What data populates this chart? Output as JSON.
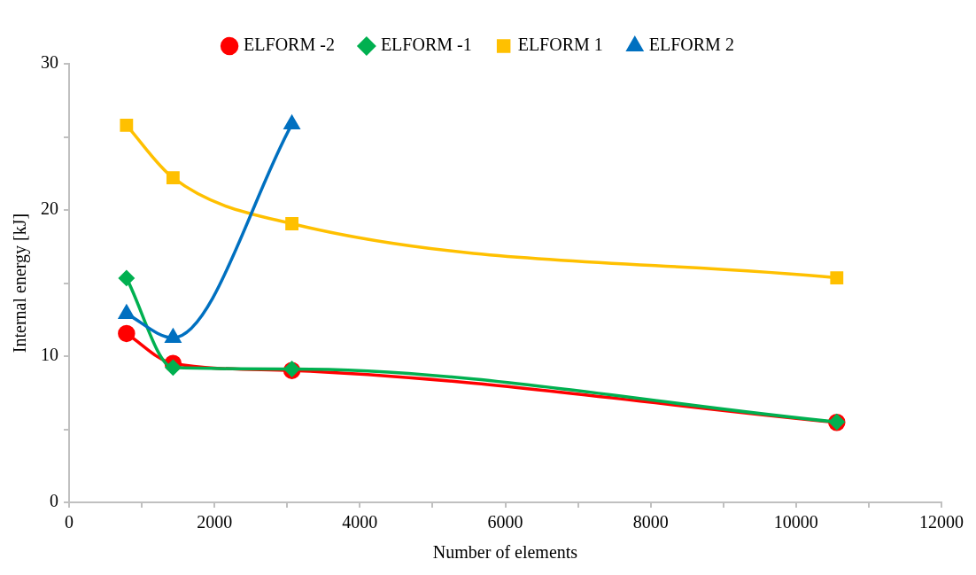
{
  "chart_data": {
    "type": "line",
    "xlabel": "Number of elements",
    "ylabel": "Internal energy [kJ]",
    "x": [
      790,
      1430,
      3065,
      10560
    ],
    "series": [
      {
        "name": "ELFORM -2",
        "color": "#ff0000",
        "marker": "circle",
        "values": [
          11.55,
          9.5,
          9.02,
          5.47
        ]
      },
      {
        "name": "ELFORM -1",
        "color": "#00b050",
        "marker": "diamond",
        "values": [
          15.34,
          9.22,
          9.12,
          5.5
        ]
      },
      {
        "name": "ELFORM 1",
        "color": "#ffc000",
        "marker": "square",
        "values": [
          25.8,
          22.2,
          19.06,
          15.36
        ]
      },
      {
        "name": "ELFORM 2",
        "color": "#0070c0",
        "marker": "triangle",
        "x": [
          790,
          1430,
          3065
        ],
        "values": [
          12.9,
          11.26,
          25.86
        ]
      }
    ],
    "xlim": [
      0,
      12000
    ],
    "xticks": [
      0,
      {
        "value": 1000,
        "label": null
      },
      2000,
      {
        "value": 3000,
        "label": null
      },
      4000,
      {
        "value": 5000,
        "label": null
      },
      6000,
      {
        "value": 7000,
        "label": null
      },
      8000,
      {
        "value": 9000,
        "label": null
      },
      10000,
      {
        "value": 11000,
        "label": null
      },
      12000
    ],
    "ylim": [
      0,
      30
    ],
    "yticks": [
      0,
      {
        "value": 5,
        "label": null
      },
      10,
      {
        "value": 15,
        "label": null
      },
      20,
      {
        "value": 25,
        "label": null
      },
      30
    ],
    "grid": false,
    "legend": "top",
    "line_style": "solid"
  }
}
